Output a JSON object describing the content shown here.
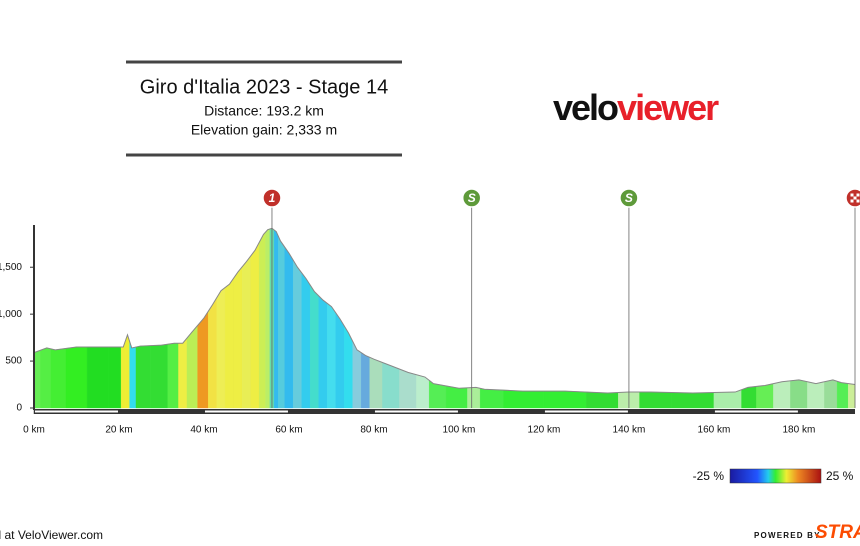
{
  "chart_data": {
    "type": "elevation-profile",
    "title": "Giro d'Italia 2023 - Stage 14",
    "subtitle": [
      "Distance: 193.2 km",
      "Elevation gain: 2,333 m"
    ],
    "logo": [
      "velo",
      "viewer"
    ],
    "x": [
      0,
      3,
      5,
      10,
      15,
      20,
      21,
      22,
      23,
      25,
      30,
      33,
      35,
      37,
      40,
      42,
      44,
      46,
      48,
      50,
      52,
      54,
      55,
      56,
      57,
      58,
      60,
      62,
      64,
      66,
      68,
      70,
      72,
      74,
      76,
      78,
      80,
      84,
      88,
      92,
      94,
      100,
      104,
      106,
      115,
      125,
      135,
      140,
      145,
      155,
      165,
      168,
      172,
      176,
      180,
      184,
      188,
      190,
      193.2
    ],
    "values": [
      590,
      640,
      620,
      650,
      650,
      650,
      650,
      780,
      640,
      660,
      670,
      690,
      690,
      800,
      960,
      1100,
      1250,
      1320,
      1450,
      1560,
      1680,
      1850,
      1900,
      1915,
      1880,
      1780,
      1650,
      1500,
      1380,
      1240,
      1150,
      1080,
      950,
      800,
      620,
      560,
      520,
      450,
      380,
      330,
      260,
      210,
      220,
      200,
      180,
      180,
      160,
      170,
      170,
      160,
      170,
      220,
      240,
      280,
      300,
      260,
      300,
      270,
      250
    ],
    "colors": [
      "#66ee55",
      "#55ee44",
      "#44ee33",
      "#33ee22",
      "#22dd22",
      "#22dd22",
      "#eeee33",
      "#eeee33",
      "#33ddee",
      "#33dd33",
      "#33dd33",
      "#55ee44",
      "#eeee44",
      "#bbee55",
      "#ee9922",
      "#f2e244",
      "#eeee55",
      "#eeee44",
      "#eeee44",
      "#e8ee55",
      "#eeee44",
      "#ccee55",
      "#bbee66",
      "#66ddaa",
      "#33bbee",
      "#55ccdd",
      "#33bbee",
      "#66ccdd",
      "#33ccee",
      "#44ddcc",
      "#33ccee",
      "#44ddee",
      "#33ccee",
      "#33ddee",
      "#88ccdd",
      "#66aadd",
      "#aaddbb",
      "#88ddcc",
      "#aaddcc",
      "#bbeecc",
      "#55ee55",
      "#44ee44",
      "#aaee99",
      "#44ee44",
      "#33ee33",
      "#33ee33",
      "#33dd33",
      "#bbeeaa",
      "#33dd33",
      "#33dd33",
      "#aaeeaa",
      "#33dd33",
      "#66ee55",
      "#bbeebb",
      "#88dd88",
      "#bbeebb",
      "#99dd99",
      "#55ee55",
      "#ccee99"
    ],
    "xlim": [
      0,
      193.2
    ],
    "ylim": [
      0,
      1950
    ],
    "xticks": [
      {
        "value": 0,
        "label": "0 km"
      },
      {
        "value": 20,
        "label": "20 km"
      },
      {
        "value": 40,
        "label": "40 km"
      },
      {
        "value": 60,
        "label": "60 km"
      },
      {
        "value": 80,
        "label": "80 km"
      },
      {
        "value": 100,
        "label": "100 km"
      },
      {
        "value": 120,
        "label": "120 km"
      },
      {
        "value": 140,
        "label": "140 km"
      },
      {
        "value": 160,
        "label": "160 km"
      },
      {
        "value": 180,
        "label": "180 km"
      }
    ],
    "yticks": [
      0,
      500,
      {
        "value": 1000,
        "label": "1,000"
      },
      {
        "value": 1500,
        "label": "1,500"
      }
    ],
    "markers": [
      {
        "km": 56,
        "label": "1",
        "color": "#c0302a"
      },
      {
        "km": 103,
        "label": "S",
        "color": "#5e9a3a"
      },
      {
        "km": 140,
        "label": "S",
        "color": "#5e9a3a"
      },
      {
        "km": 193.2,
        "color": "#c0302a"
      }
    ],
    "gradient_legend": [
      "-25 %",
      "25 %"
    ],
    "footer": [
      "Created at VeloViewer.com",
      "POWERED BY",
      "STRA"
    ]
  }
}
